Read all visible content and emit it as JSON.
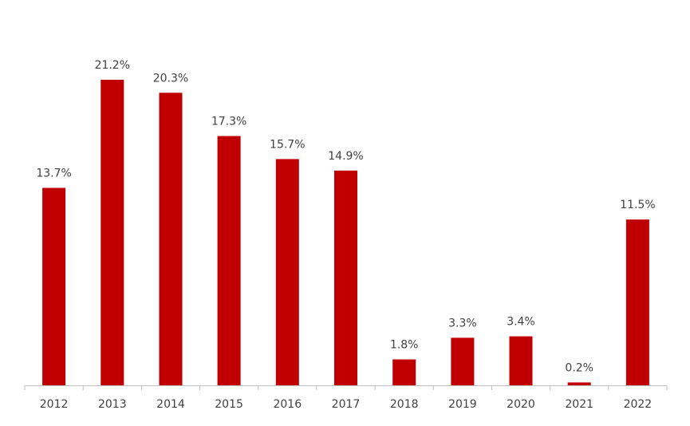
{
  "chart_data": {
    "type": "bar",
    "categories": [
      "2012",
      "2013",
      "2014",
      "2015",
      "2016",
      "2017",
      "2018",
      "2019",
      "2020",
      "2021",
      "2022"
    ],
    "values": [
      13.7,
      21.2,
      20.3,
      17.3,
      15.7,
      14.9,
      1.8,
      3.3,
      3.4,
      0.2,
      11.5
    ],
    "data_labels": [
      "13.7%",
      "21.2%",
      "20.3%",
      "17.3%",
      "15.7%",
      "14.9%",
      "1.8%",
      "3.3%",
      "3.4%",
      "0.2%",
      "11.5%"
    ],
    "value_unit": "%",
    "bar_color": "#C00000",
    "axis_color": "#BFBFBF",
    "text_color": "#404040",
    "ylim": [
      0,
      21.2
    ],
    "grid": false,
    "legend": "none"
  }
}
